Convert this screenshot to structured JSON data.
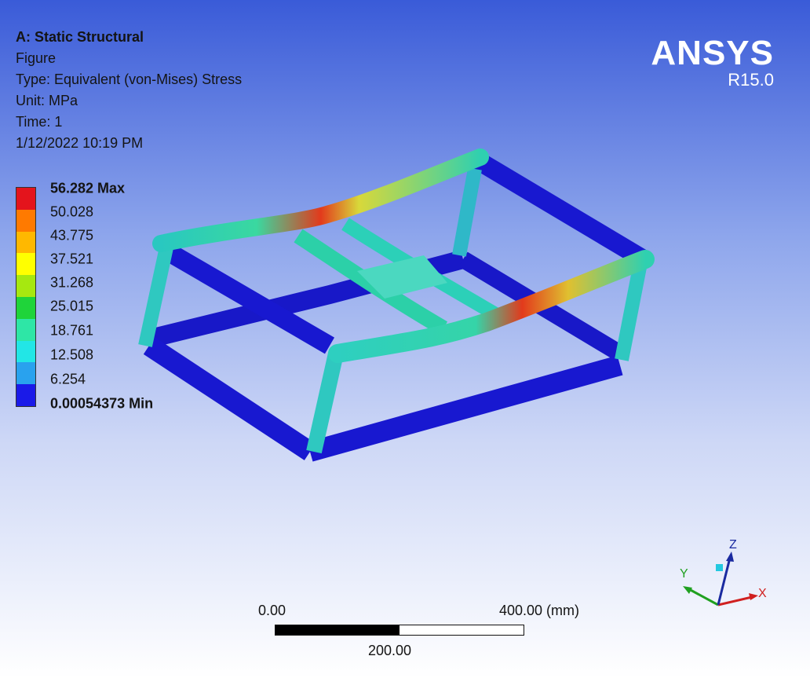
{
  "info": {
    "title": "A: Static Structural",
    "figure": "Figure",
    "type": "Type: Equivalent (von-Mises) Stress",
    "unit": "Unit: MPa",
    "time": "Time: 1",
    "date": "1/12/2022 10:19 PM"
  },
  "logo": {
    "brand": "ANSYS",
    "version": "R15.0"
  },
  "legend": {
    "colors": [
      "#e4141c",
      "#ff7a00",
      "#ffb800",
      "#ffff00",
      "#a6e810",
      "#1fd43a",
      "#2ee6a6",
      "#22e6e6",
      "#29a2ee",
      "#1a1ae8"
    ],
    "labels": [
      "56.282 Max",
      "50.028",
      "43.775",
      "37.521",
      "31.268",
      "25.015",
      "18.761",
      "12.508",
      "6.254",
      "0.00054373 Min"
    ]
  },
  "scale": {
    "left": "0.00",
    "right": "400.00 (mm)",
    "mid": "200.00"
  },
  "triad": {
    "x": "X",
    "y": "Y",
    "z": "Z"
  }
}
